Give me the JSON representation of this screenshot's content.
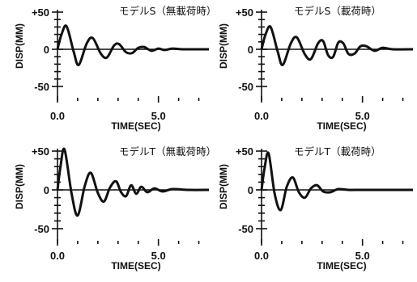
{
  "chart_data": [
    {
      "type": "line",
      "title": "モデルS（無載荷時）",
      "xlabel": "TIME(SEC)",
      "ylabel": "DISP(MM)",
      "xlim": [
        0,
        7.5
      ],
      "ylim": [
        -60,
        60
      ],
      "x_ticks": [
        "0.0",
        "5.0"
      ],
      "y_ticks": [
        "+50",
        "0",
        "-50"
      ],
      "y_tick_values": [
        50,
        0,
        -50
      ],
      "series": [
        {
          "x": [
            0,
            0.2,
            0.45,
            0.8,
            1.05,
            1.45,
            1.75,
            2.15,
            2.45,
            2.8,
            3.05,
            3.4,
            3.7,
            4.0,
            4.3,
            4.65,
            5.0,
            5.3,
            5.7,
            6.2,
            7.5
          ],
          "values": [
            0,
            20,
            31,
            -3,
            -21,
            8,
            15,
            -6,
            -11,
            5,
            7,
            -4,
            -5,
            2,
            3,
            -2,
            1,
            -1,
            1,
            0,
            0
          ]
        }
      ]
    },
    {
      "type": "line",
      "title": "モデルS（載荷時）",
      "xlabel": "TIME(SEC)",
      "ylabel": "DISP(MM)",
      "xlim": [
        0,
        7.5
      ],
      "ylim": [
        -60,
        60
      ],
      "x_ticks": [
        "0.0",
        "5.0"
      ],
      "y_ticks": [
        "+50",
        "0",
        "-50"
      ],
      "y_tick_values": [
        50,
        0,
        -50
      ],
      "series": [
        {
          "x": [
            0,
            0.2,
            0.45,
            0.8,
            1.05,
            1.45,
            1.75,
            2.15,
            2.45,
            2.8,
            3.05,
            3.3,
            3.55,
            3.8,
            4.05,
            4.3,
            4.6,
            4.9,
            5.2,
            5.6,
            6.0,
            6.5,
            7.5
          ],
          "values": [
            0,
            20,
            30,
            -3,
            -21,
            8,
            16,
            -7,
            -13,
            8,
            11,
            -8,
            -10,
            9,
            8,
            -6,
            -6,
            4,
            4,
            -2,
            2,
            0,
            0
          ]
        }
      ]
    },
    {
      "type": "line",
      "title": "モデルT（無載荷時）",
      "xlabel": "TIME(SEC)",
      "ylabel": "DISP(MM)",
      "xlim": [
        0,
        7.5
      ],
      "ylim": [
        -60,
        60
      ],
      "x_ticks": [
        "0.0",
        "5.0"
      ],
      "y_ticks": [
        "+50",
        "0",
        "-50"
      ],
      "y_tick_values": [
        50,
        0,
        -50
      ],
      "series": [
        {
          "x": [
            0,
            0.15,
            0.35,
            0.7,
            1.0,
            1.35,
            1.65,
            2.0,
            2.3,
            2.6,
            2.9,
            3.15,
            3.4,
            3.65,
            3.9,
            4.15,
            4.45,
            4.8,
            5.2,
            5.7,
            6.5,
            7.5
          ],
          "values": [
            0,
            30,
            52,
            -5,
            -33,
            5,
            22,
            -4,
            -15,
            3,
            11,
            -3,
            -8,
            6,
            -5,
            4,
            -3,
            2,
            -2,
            1,
            0,
            0
          ]
        }
      ]
    },
    {
      "type": "line",
      "title": "モデルT（載荷時）",
      "xlabel": "TIME(SEC)",
      "ylabel": "DISP(MM)",
      "xlim": [
        0,
        7.5
      ],
      "ylim": [
        -60,
        60
      ],
      "x_ticks": [
        "0.0",
        "5.0"
      ],
      "y_ticks": [
        "+50",
        "0",
        "-50"
      ],
      "y_tick_values": [
        50,
        0,
        -50
      ],
      "series": [
        {
          "x": [
            0,
            0.15,
            0.35,
            0.65,
            0.95,
            1.25,
            1.55,
            1.85,
            2.15,
            2.45,
            2.75,
            3.05,
            3.4,
            3.8,
            4.3,
            5.0,
            7.5
          ],
          "values": [
            0,
            28,
            47,
            -5,
            -26,
            4,
            16,
            -3,
            -10,
            2,
            6,
            -2,
            -3,
            1,
            0,
            0,
            0
          ]
        }
      ]
    }
  ]
}
